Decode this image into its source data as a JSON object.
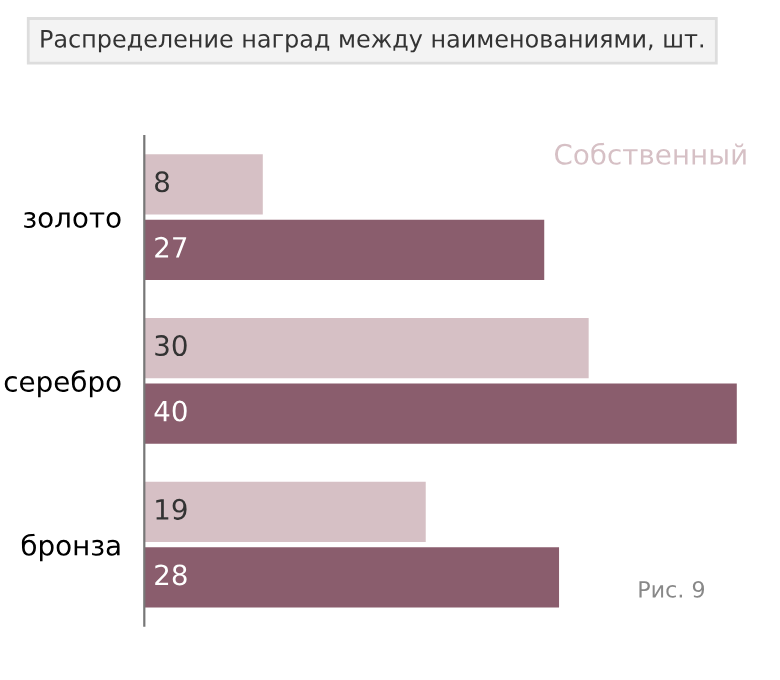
{
  "chart_data": {
    "type": "bar",
    "orientation": "horizontal",
    "title": "Распределение наград между наименованиями, шт.",
    "categories": [
      "золото",
      "серебро",
      "бронза"
    ],
    "series": [
      {
        "name": "Собственный",
        "color": "#d6c0c5",
        "values": [
          8,
          30,
          19
        ]
      },
      {
        "color": "#8a5d6d",
        "values": [
          27,
          40,
          28
        ]
      }
    ],
    "data_labels": true,
    "legend": "top right",
    "grid": false,
    "annotations": [
      {
        "text": "Рис. 9"
      }
    ]
  }
}
